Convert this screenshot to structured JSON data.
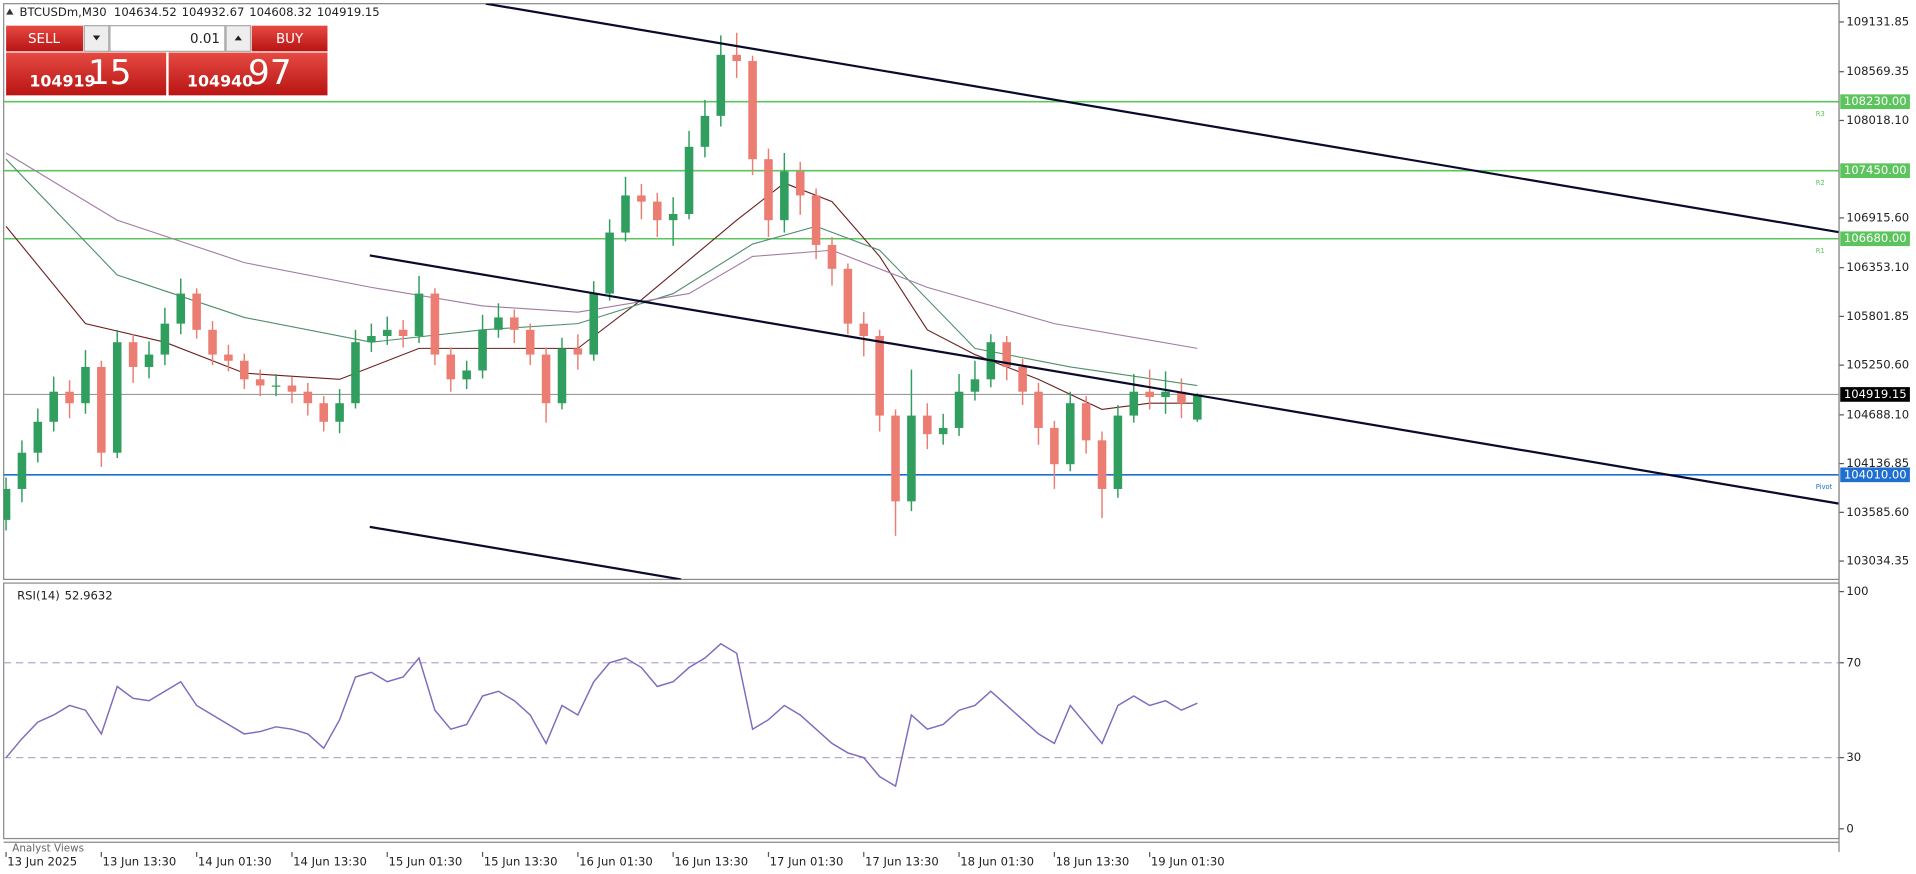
{
  "chart_data": [
    {
      "type": "candlestick",
      "title": "BTCUSDm,M30",
      "xlim": [
        -0.15,
        115.4
      ],
      "xticks": [
        {
          "value": 0,
          "label": "13 Jun 2025"
        },
        {
          "value": 6,
          "label": "13 Jun 13:30"
        },
        {
          "value": 12,
          "label": "14 Jun 01:30"
        },
        {
          "value": 18,
          "label": "14 Jun 13:30"
        },
        {
          "value": 24,
          "label": "15 Jun 01:30"
        },
        {
          "value": 30,
          "label": "15 Jun 13:30"
        },
        {
          "value": 36,
          "label": "16 Jun 01:30"
        },
        {
          "value": 42,
          "label": "16 Jun 13:30"
        },
        {
          "value": 48,
          "label": "17 Jun 01:30"
        },
        {
          "value": 54,
          "label": "17 Jun 13:30"
        },
        {
          "value": 60,
          "label": "18 Jun 01:30"
        },
        {
          "value": 66,
          "label": "18 Jun 13:30"
        },
        {
          "value": 72,
          "label": "19 Jun 01:30"
        }
      ],
      "ylim": [
        102827,
        109339
      ],
      "yticks": [
        109131.85,
        108569.35,
        {
          "value": 108018.1,
          "label": "108018.10"
        },
        {
          "value": 106915.6,
          "label": "106915.60"
        },
        {
          "value": 106353.1,
          "label": "106353.10"
        },
        105801.85,
        {
          "value": 105250.6,
          "label": "105250.60"
        },
        {
          "value": 104688.1,
          "label": "104688.10"
        },
        104136.85,
        {
          "value": 103585.6,
          "label": "103585.60"
        },
        103034.35
      ],
      "grid": false,
      "up_color": "#2f9e5e",
      "down_color": "#ec7d72",
      "candles": {
        "open": [
          103500,
          103850,
          104260,
          104610,
          104950,
          104820,
          105230,
          104260,
          105510,
          105230,
          105370,
          105720,
          106060,
          105650,
          105370,
          105300,
          105090,
          105020,
          105020,
          104950,
          104820,
          104610,
          104820,
          105510,
          105580,
          105650,
          105580,
          106060,
          105370,
          105090,
          105190,
          105650,
          105790,
          105650,
          105370,
          104820,
          105440,
          105370,
          106060,
          106750,
          107170,
          107100,
          106890,
          106960,
          107720,
          108070,
          108760,
          108690,
          107580,
          106890,
          107440,
          107170,
          106610,
          106340,
          105720,
          105580,
          104680,
          103710,
          104680,
          104470,
          104540,
          104950,
          105090,
          105510,
          105230,
          104950,
          104540,
          104130,
          104820,
          104400,
          103850,
          104680,
          104950,
          104890,
          104950,
          104634.52
        ],
        "high": [
          103980,
          104400,
          104760,
          105120,
          105080,
          105420,
          105300,
          105650,
          105600,
          105520,
          105900,
          106230,
          106120,
          105750,
          105480,
          105380,
          105200,
          105150,
          105120,
          105050,
          104900,
          104980,
          105650,
          105720,
          105800,
          105760,
          106260,
          106120,
          105450,
          105300,
          105820,
          105950,
          105880,
          105720,
          105450,
          105560,
          105600,
          106200,
          106900,
          107380,
          107300,
          107200,
          107150,
          107900,
          108250,
          108980,
          109010,
          108750,
          107700,
          107650,
          107550,
          107250,
          106700,
          106400,
          105850,
          105650,
          104750,
          105200,
          104820,
          104700,
          105150,
          105300,
          105600,
          105580,
          105320,
          105050,
          104620,
          104950,
          104900,
          104500,
          104800,
          105150,
          105200,
          105180,
          105100,
          104932.67
        ],
        "low": [
          103380,
          103700,
          104150,
          104500,
          104650,
          104700,
          104100,
          104200,
          105050,
          105100,
          105250,
          105600,
          105550,
          105250,
          105180,
          104980,
          104900,
          104900,
          104820,
          104680,
          104500,
          104480,
          104760,
          105400,
          105480,
          105450,
          105500,
          105250,
          104950,
          104980,
          105100,
          105560,
          105500,
          105250,
          104600,
          104750,
          105200,
          105300,
          105980,
          106650,
          106900,
          106700,
          106600,
          106900,
          107600,
          107950,
          108500,
          107400,
          106700,
          106750,
          106950,
          106450,
          106150,
          105600,
          105350,
          104500,
          103320,
          103600,
          104300,
          104350,
          104450,
          104850,
          105000,
          105080,
          104800,
          104350,
          103850,
          104050,
          104250,
          103520,
          103750,
          104600,
          104750,
          104700,
          104650,
          104608.32
        ],
        "close": [
          103850,
          104260,
          104610,
          104950,
          104820,
          105230,
          104260,
          105510,
          105230,
          105370,
          105720,
          106060,
          105650,
          105370,
          105300,
          105090,
          105020,
          105020,
          104950,
          104820,
          104610,
          104820,
          105510,
          105580,
          105650,
          105580,
          106060,
          105370,
          105090,
          105190,
          105650,
          105790,
          105650,
          105370,
          104820,
          105440,
          105370,
          106060,
          106750,
          107170,
          107100,
          106890,
          106960,
          107720,
          108070,
          108760,
          108690,
          107580,
          106890,
          107440,
          107170,
          106610,
          106340,
          105720,
          105580,
          104680,
          103710,
          104680,
          104470,
          104540,
          104950,
          105090,
          105510,
          105230,
          104950,
          104540,
          104130,
          104820,
          104400,
          103850,
          104680,
          104950,
          104890,
          104950,
          104820,
          104919.15
        ]
      },
      "moving_averages": [
        {
          "color": "#6b1f1f",
          "x": [
            0,
            5,
            10,
            15,
            21,
            26,
            32,
            36,
            40,
            46,
            49,
            52,
            55,
            58,
            61,
            65,
            69,
            72,
            75
          ],
          "values": [
            106820,
            105720,
            105510,
            105160,
            105090,
            105440,
            105440,
            105440,
            105990,
            106890,
            107310,
            107100,
            106480,
            105650,
            105370,
            105090,
            104750,
            104820,
            104820
          ]
        },
        {
          "color": "#4e8f6a",
          "x": [
            0,
            7,
            15,
            23,
            30,
            36,
            42,
            47,
            51,
            55,
            61,
            67,
            75
          ],
          "values": [
            107580,
            106270,
            105790,
            105510,
            105650,
            105720,
            106060,
            106620,
            106820,
            106550,
            105440,
            105230,
            105020
          ]
        },
        {
          "color": "#a27aa2",
          "x": [
            0,
            7,
            15,
            23,
            30,
            36,
            43,
            47,
            52,
            58,
            66,
            75
          ],
          "values": [
            107650,
            106890,
            106410,
            106130,
            105920,
            105850,
            106060,
            106480,
            106550,
            106130,
            105720,
            105440
          ]
        }
      ],
      "levels": [
        {
          "name": "R3",
          "value": 108230,
          "label": "108230.00",
          "color": "#5cc45c"
        },
        {
          "name": "R2",
          "value": 107450,
          "label": "107450.00",
          "color": "#5cc45c"
        },
        {
          "name": "R1",
          "value": 106680,
          "label": "106680.00",
          "color": "#5cc45c"
        },
        {
          "name": "Pivot",
          "value": 104010,
          "label": "104010.00",
          "color": "#1e6fd0"
        }
      ],
      "current_price_color": "#9a9a9a",
      "trendlines": [
        {
          "x": [
            30.2,
            115.4
          ],
          "y": [
            109339,
            106754
          ]
        },
        {
          "x": [
            22.9,
            115.4
          ],
          "y": [
            106491,
            103684
          ]
        },
        {
          "x": [
            22.9,
            42.5
          ],
          "y": [
            103421,
            102827
          ]
        }
      ]
    },
    {
      "type": "line",
      "title": "RSI(14)",
      "xlim": [
        -0.15,
        115.4
      ],
      "ylim": [
        -4.1,
        103.6
      ],
      "yticks": [
        0,
        30,
        70,
        100
      ],
      "levels": [
        30,
        70
      ],
      "series": [
        {
          "color": "#7f6bbf",
          "values": [
            30,
            38,
            45,
            48,
            52,
            50,
            40,
            60,
            55,
            54,
            58,
            62,
            52,
            48,
            44,
            40,
            41,
            43,
            42,
            40,
            34,
            46,
            64,
            66,
            62,
            64,
            72,
            50,
            42,
            44,
            56,
            58,
            54,
            48,
            36,
            52,
            48,
            62,
            70,
            72,
            68,
            60,
            62,
            68,
            72,
            78,
            74,
            42,
            46,
            52,
            48,
            42,
            36,
            32,
            30,
            22,
            18,
            48,
            42,
            44,
            50,
            52,
            58,
            52,
            46,
            40,
            36,
            52,
            44,
            36,
            52,
            56,
            52,
            54,
            50,
            52.9632
          ]
        }
      ]
    }
  ],
  "trade_panel": {
    "sell": "SELL",
    "buy": "BUY",
    "volume": "0.01",
    "bid_main": "104919",
    "bid_pips": "15",
    "ask_main": "104940",
    "ask_pips": "97"
  },
  "footer": {
    "tab": "Analyst Views"
  }
}
